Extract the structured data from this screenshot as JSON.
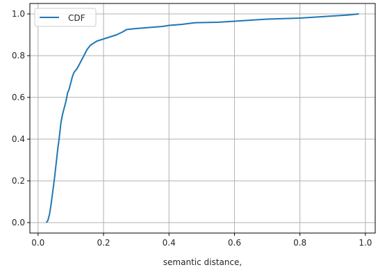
{
  "chart_data": {
    "type": "line",
    "title": "",
    "xlabel": "semantic distance,",
    "ylabel": "",
    "xlim": [
      -0.025,
      1.03
    ],
    "ylim": [
      -0.05,
      1.05
    ],
    "xticks": [
      "0.0",
      "0.2",
      "0.4",
      "0.6",
      "0.8",
      "1.0"
    ],
    "yticks": [
      "0.0",
      "0.2",
      "0.4",
      "0.6",
      "0.8",
      "1.0"
    ],
    "grid": true,
    "legend_position": "top-left",
    "series": [
      {
        "name": "CDF",
        "color": "#1f77b4",
        "x": [
          0.025,
          0.03,
          0.035,
          0.04,
          0.045,
          0.05,
          0.055,
          0.06,
          0.065,
          0.07,
          0.075,
          0.08,
          0.085,
          0.09,
          0.095,
          0.1,
          0.105,
          0.11,
          0.115,
          0.12,
          0.13,
          0.14,
          0.15,
          0.16,
          0.17,
          0.18,
          0.19,
          0.2,
          0.22,
          0.24,
          0.26,
          0.27,
          0.3,
          0.34,
          0.38,
          0.4,
          0.44,
          0.48,
          0.55,
          0.6,
          0.65,
          0.7,
          0.8,
          0.9,
          0.95,
          0.98
        ],
        "y": [
          0.0,
          0.01,
          0.04,
          0.09,
          0.15,
          0.21,
          0.28,
          0.35,
          0.41,
          0.48,
          0.52,
          0.55,
          0.58,
          0.62,
          0.64,
          0.67,
          0.7,
          0.72,
          0.73,
          0.74,
          0.77,
          0.8,
          0.83,
          0.85,
          0.86,
          0.87,
          0.875,
          0.88,
          0.89,
          0.9,
          0.915,
          0.925,
          0.93,
          0.935,
          0.94,
          0.945,
          0.95,
          0.958,
          0.96,
          0.965,
          0.97,
          0.975,
          0.98,
          0.99,
          0.995,
          1.0
        ]
      }
    ]
  }
}
